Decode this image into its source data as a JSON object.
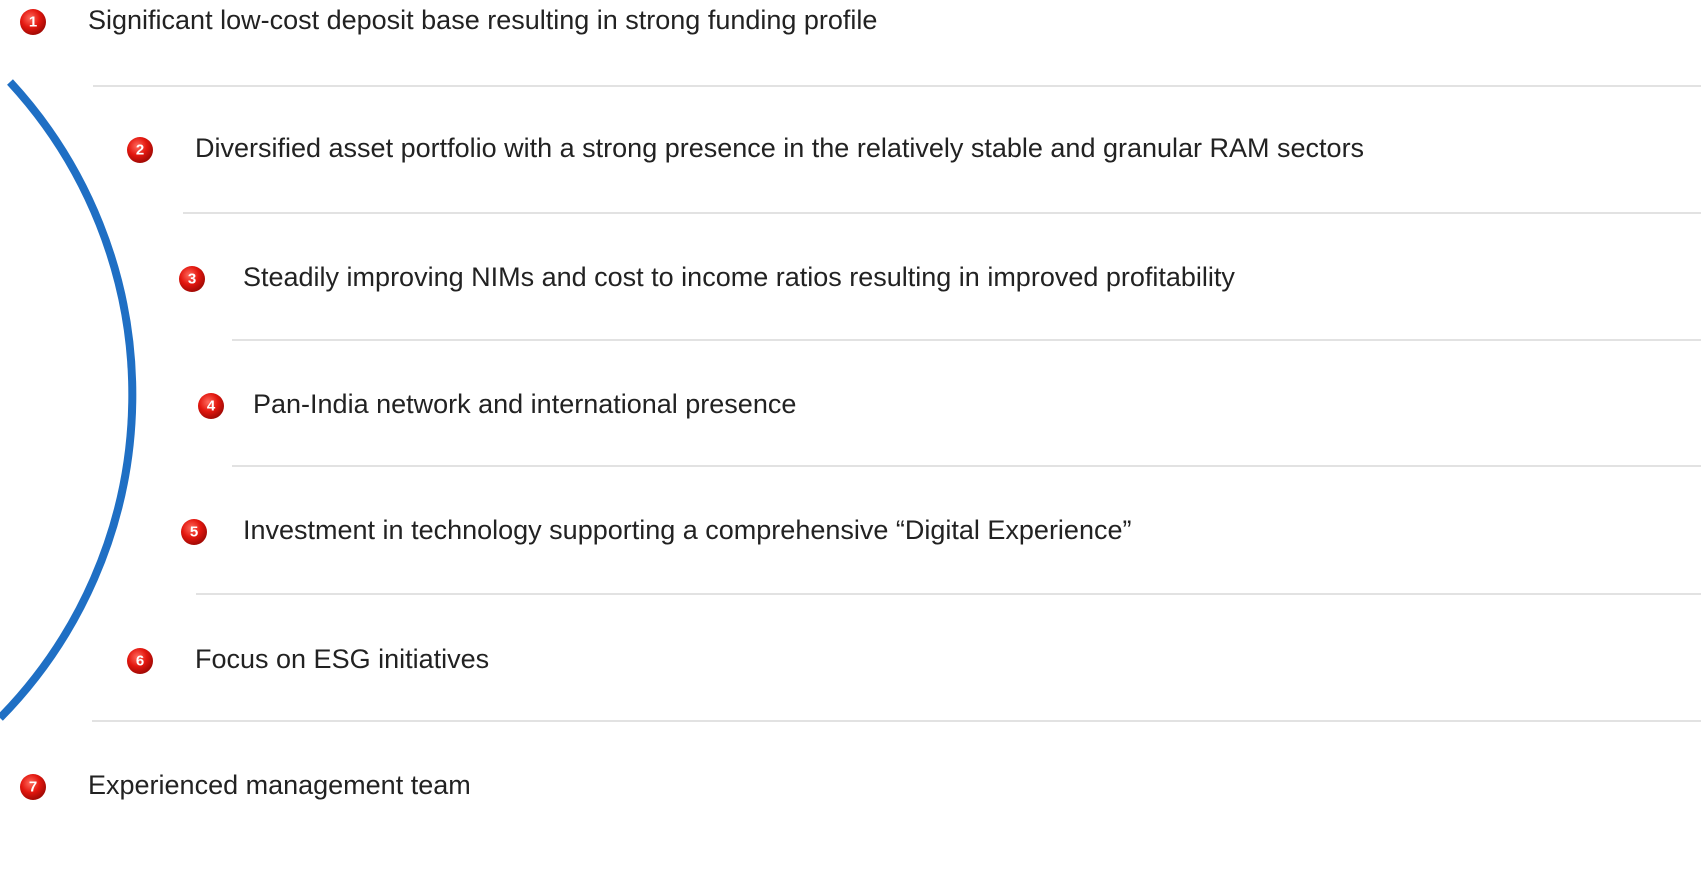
{
  "items": [
    {
      "number": "1",
      "text": "Significant low-cost deposit base resulting in strong funding profile"
    },
    {
      "number": "2",
      "text": "Diversified asset portfolio with a strong presence in the relatively stable and granular RAM sectors"
    },
    {
      "number": "3",
      "text": "Steadily improving NIMs and cost to income ratios resulting in improved profitability"
    },
    {
      "number": "4",
      "text": "Pan-India network and international presence"
    },
    {
      "number": "5",
      "text": "Investment in technology supporting a comprehensive “Digital Experience”"
    },
    {
      "number": "6",
      "text": "Focus on ESG initiatives"
    },
    {
      "number": "7",
      "text": "Experienced management team"
    }
  ]
}
